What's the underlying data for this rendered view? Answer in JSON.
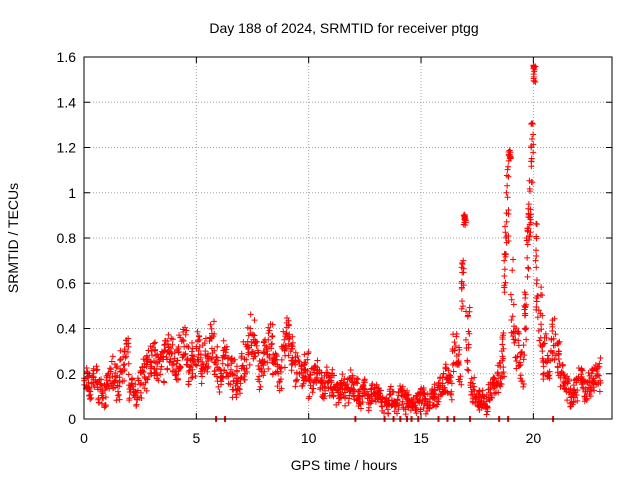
{
  "chart_data": {
    "type": "scatter",
    "title": "Day 188 of 2024, SRMTID for receiver ptgg",
    "xlabel": "GPS time / hours",
    "ylabel": "SRMTID / TECUs",
    "xlim": [
      0,
      23.5
    ],
    "ylim": [
      0,
      1.6
    ],
    "xticks": [
      "0",
      "5",
      "10",
      "15",
      "20"
    ],
    "xtick_values": [
      0,
      5,
      10,
      15,
      20
    ],
    "yticks": [
      "0",
      "0.2",
      "0.4",
      "0.6",
      "0.8",
      "1",
      "1.2",
      "1.4",
      "1.6"
    ],
    "ytick_values": [
      0,
      0.2,
      0.4,
      0.6,
      0.8,
      1.0,
      1.2,
      1.4,
      1.6
    ],
    "grid": true,
    "marker": "+",
    "color": "#ff0000",
    "series": [
      {
        "name": "SRMTID",
        "x": [
          0.0,
          0.2,
          0.4,
          0.6,
          0.8,
          1.0,
          1.2,
          1.4,
          1.6,
          1.8,
          2.0,
          2.2,
          2.4,
          2.6,
          2.8,
          3.0,
          3.2,
          3.4,
          3.6,
          3.8,
          4.0,
          4.2,
          4.4,
          4.6,
          4.8,
          5.0,
          5.2,
          5.4,
          5.6,
          5.8,
          6.0,
          6.2,
          6.4,
          6.6,
          6.8,
          7.0,
          7.2,
          7.4,
          7.6,
          7.8,
          8.0,
          8.2,
          8.4,
          8.6,
          8.8,
          9.0,
          9.2,
          9.4,
          9.6,
          9.8,
          10.0,
          10.2,
          10.4,
          10.6,
          10.8,
          11.0,
          11.2,
          11.4,
          11.6,
          11.8,
          12.0,
          12.2,
          12.4,
          12.6,
          12.8,
          13.0,
          13.2,
          13.4,
          13.6,
          13.8,
          14.0,
          14.2,
          14.4,
          14.6,
          14.8,
          15.0,
          15.2,
          15.4,
          15.6,
          15.8,
          16.0,
          16.2,
          16.4,
          16.6,
          16.8,
          16.9,
          17.0,
          17.2,
          17.4,
          17.6,
          17.8,
          18.0,
          18.2,
          18.4,
          18.6,
          18.7,
          18.8,
          18.9,
          19.0,
          19.2,
          19.4,
          19.6,
          19.7,
          19.8,
          19.9,
          20.0,
          20.1,
          20.2,
          20.4,
          20.6,
          20.8,
          21.0,
          21.2,
          21.4,
          21.6,
          21.8,
          22.0,
          22.2,
          22.4,
          22.6,
          22.8
        ],
        "y": [
          0.18,
          0.16,
          0.2,
          0.14,
          0.12,
          0.19,
          0.22,
          0.17,
          0.26,
          0.3,
          0.15,
          0.13,
          0.18,
          0.21,
          0.28,
          0.3,
          0.25,
          0.27,
          0.33,
          0.29,
          0.24,
          0.31,
          0.35,
          0.26,
          0.28,
          0.32,
          0.27,
          0.3,
          0.36,
          0.25,
          0.22,
          0.28,
          0.24,
          0.2,
          0.18,
          0.27,
          0.33,
          0.38,
          0.29,
          0.22,
          0.3,
          0.35,
          0.26,
          0.21,
          0.32,
          0.38,
          0.3,
          0.24,
          0.2,
          0.25,
          0.18,
          0.22,
          0.2,
          0.16,
          0.19,
          0.17,
          0.14,
          0.16,
          0.13,
          0.18,
          0.15,
          0.12,
          0.14,
          0.11,
          0.13,
          0.12,
          0.1,
          0.09,
          0.11,
          0.08,
          0.12,
          0.1,
          0.09,
          0.08,
          0.1,
          0.12,
          0.09,
          0.11,
          0.13,
          0.16,
          0.2,
          0.18,
          0.3,
          0.25,
          0.6,
          0.9,
          0.35,
          0.15,
          0.1,
          0.12,
          0.09,
          0.13,
          0.16,
          0.2,
          0.3,
          0.7,
          1.0,
          1.18,
          0.55,
          0.35,
          0.25,
          0.5,
          0.8,
          0.95,
          1.2,
          1.55,
          0.7,
          0.45,
          0.3,
          0.25,
          0.35,
          0.28,
          0.2,
          0.16,
          0.12,
          0.15,
          0.18,
          0.14,
          0.16,
          0.2,
          0.22
        ],
        "band": [
          0.05,
          0.05,
          0.05,
          0.06,
          0.05,
          0.06,
          0.07,
          0.07,
          0.08,
          0.08,
          0.05,
          0.05,
          0.06,
          0.07,
          0.08,
          0.08,
          0.08,
          0.08,
          0.09,
          0.08,
          0.07,
          0.08,
          0.09,
          0.08,
          0.08,
          0.08,
          0.08,
          0.08,
          0.09,
          0.08,
          0.07,
          0.08,
          0.07,
          0.07,
          0.07,
          0.08,
          0.09,
          0.09,
          0.09,
          0.08,
          0.09,
          0.09,
          0.08,
          0.07,
          0.08,
          0.09,
          0.08,
          0.07,
          0.06,
          0.07,
          0.06,
          0.06,
          0.06,
          0.05,
          0.06,
          0.06,
          0.05,
          0.05,
          0.05,
          0.05,
          0.05,
          0.04,
          0.04,
          0.04,
          0.04,
          0.04,
          0.04,
          0.03,
          0.04,
          0.03,
          0.04,
          0.04,
          0.03,
          0.03,
          0.04,
          0.04,
          0.04,
          0.04,
          0.05,
          0.05,
          0.06,
          0.06,
          0.1,
          0.08,
          0.15,
          0.01,
          0.15,
          0.05,
          0.04,
          0.05,
          0.04,
          0.05,
          0.06,
          0.07,
          0.1,
          0.2,
          0.2,
          0.02,
          0.2,
          0.12,
          0.1,
          0.15,
          0.15,
          0.15,
          0.15,
          0.05,
          0.2,
          0.15,
          0.1,
          0.08,
          0.1,
          0.09,
          0.07,
          0.06,
          0.05,
          0.05,
          0.06,
          0.05,
          0.05,
          0.06,
          0.07
        ]
      }
    ],
    "zero_markers_x": [
      5.9,
      6.3,
      12.1,
      13.4,
      13.8,
      14.1,
      14.4,
      14.6,
      14.9,
      15.8,
      16.2,
      16.5,
      17.2,
      18.5,
      18.9,
      20.9
    ]
  }
}
